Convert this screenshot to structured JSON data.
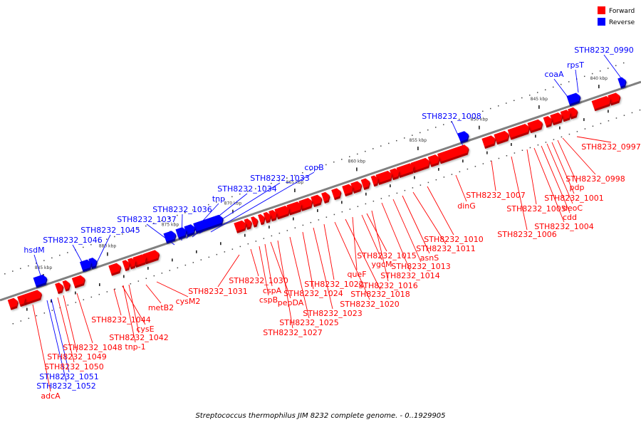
{
  "colors": {
    "forward": "#ff0000",
    "forward_shade": "#b00000",
    "reverse": "#0000ff",
    "reverse_shade": "#00009e",
    "backbone": "#808080"
  },
  "legend": {
    "forward": "Forward",
    "reverse": "Reverse"
  },
  "caption": "Streptococcus thermophilus JIM 8232 complete genome. - 0..1929905",
  "ticks": [
    "840 kbp",
    "845 kbp",
    "850 kbp",
    "855 kbp",
    "860 kbp",
    "865 kbp",
    "870 kbp",
    "875 kbp",
    "880 kbp",
    "885 kbp"
  ],
  "genes": [
    {
      "label": "STH8232_0990",
      "strand": "reverse"
    },
    {
      "label": "rpsT",
      "strand": "reverse"
    },
    {
      "label": "coaA",
      "strand": "reverse"
    },
    {
      "label": "STH8232_1008",
      "strand": "reverse"
    },
    {
      "label": "copB",
      "strand": "reverse"
    },
    {
      "label": "STH8232_1033",
      "strand": "reverse"
    },
    {
      "label": "STH8232_1034",
      "strand": "reverse"
    },
    {
      "label": "tnp",
      "strand": "reverse"
    },
    {
      "label": "STH8232_1036",
      "strand": "reverse"
    },
    {
      "label": "STH8232_1037",
      "strand": "reverse"
    },
    {
      "label": "STH8232_1045",
      "strand": "reverse"
    },
    {
      "label": "STH8232_1046",
      "strand": "reverse"
    },
    {
      "label": "hsdM",
      "strand": "reverse"
    },
    {
      "label": "STH8232_0997",
      "strand": "forward"
    },
    {
      "label": "STH8232_0998",
      "strand": "forward"
    },
    {
      "label": "pdp",
      "strand": "forward"
    },
    {
      "label": "STH8232_1001",
      "strand": "forward"
    },
    {
      "label": "deoC",
      "strand": "forward"
    },
    {
      "label": "cdd",
      "strand": "forward"
    },
    {
      "label": "STH8232_1004",
      "strand": "forward"
    },
    {
      "label": "STH8232_1005",
      "strand": "forward"
    },
    {
      "label": "STH8232_1006",
      "strand": "forward"
    },
    {
      "label": "STH8232_1007",
      "strand": "forward"
    },
    {
      "label": "dinG",
      "strand": "forward"
    },
    {
      "label": "STH8232_1010",
      "strand": "forward"
    },
    {
      "label": "STH8232_1011",
      "strand": "forward"
    },
    {
      "label": "asnS",
      "strand": "forward"
    },
    {
      "label": "STH8232_1013",
      "strand": "forward"
    },
    {
      "label": "STH8232_1014",
      "strand": "forward"
    },
    {
      "label": "STH8232_1015",
      "strand": "forward"
    },
    {
      "label": "ygcM",
      "strand": "forward"
    },
    {
      "label": "queF",
      "strand": "forward"
    },
    {
      "label": "STH8232_1016",
      "strand": "forward"
    },
    {
      "label": "STH8232_1018",
      "strand": "forward"
    },
    {
      "label": "STH8232_1020",
      "strand": "forward"
    },
    {
      "label": "STH8232_1022",
      "strand": "forward"
    },
    {
      "label": "STH8232_1023",
      "strand": "forward"
    },
    {
      "label": "STH8232_1024",
      "strand": "forward"
    },
    {
      "label": "STH8232_1025",
      "strand": "forward"
    },
    {
      "label": "STH8232_1027",
      "strand": "forward"
    },
    {
      "label": "pepDA",
      "strand": "forward"
    },
    {
      "label": "cspA",
      "strand": "forward"
    },
    {
      "label": "cspB",
      "strand": "forward"
    },
    {
      "label": "STH8232_1030",
      "strand": "forward"
    },
    {
      "label": "STH8232_1031",
      "strand": "forward"
    },
    {
      "label": "cysM2",
      "strand": "forward"
    },
    {
      "label": "metB2",
      "strand": "forward"
    },
    {
      "label": "STH8232_1044",
      "strand": "forward"
    },
    {
      "label": "cysE",
      "strand": "forward"
    },
    {
      "label": "STH8232_1042",
      "strand": "forward"
    },
    {
      "label": "tnp-1",
      "strand": "forward"
    },
    {
      "label": "STH8232_1048",
      "strand": "forward"
    },
    {
      "label": "STH8232_1049",
      "strand": "forward"
    },
    {
      "label": "STH8232_1050",
      "strand": "forward"
    },
    {
      "label": "STH8232_1051",
      "strand": "reverse"
    },
    {
      "label": "STH8232_1052",
      "strand": "reverse"
    },
    {
      "label": "adcA",
      "strand": "forward"
    }
  ]
}
